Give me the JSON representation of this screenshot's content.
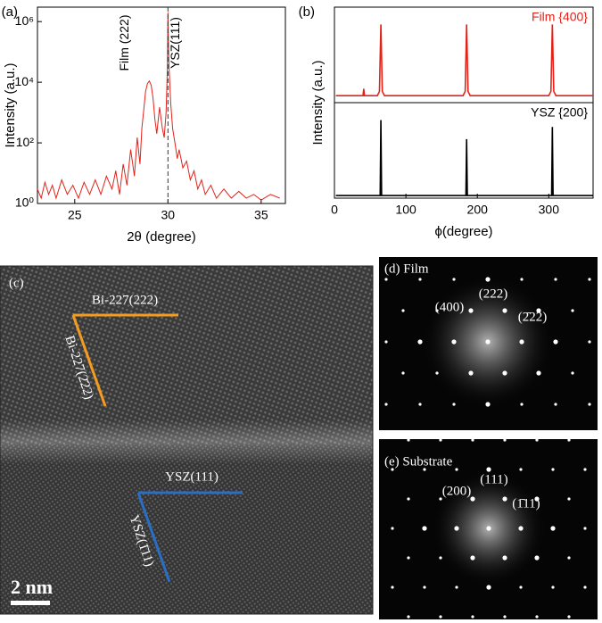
{
  "chart_data": [
    {
      "type": "line",
      "label": "(a)",
      "x_label": "2θ (degree)",
      "y_label": "Intensity (a.u.)",
      "log_y": true,
      "xlim": [
        23,
        36.3
      ],
      "xticks": [
        25,
        30,
        35
      ],
      "ylim": [
        1,
        3000000
      ],
      "yticks": [
        {
          "value": 1,
          "label": "10⁰"
        },
        {
          "value": 100,
          "label": "10²"
        },
        {
          "value": 10000,
          "label": "10⁴"
        },
        {
          "value": 1000000,
          "label": "10⁶"
        }
      ],
      "reference_line_x": 30,
      "annotations": [
        "Film (222)",
        "YSZ(111)"
      ],
      "series": [
        {
          "color": "#e2231a",
          "x": [
            23.0,
            23.2,
            23.4,
            23.6,
            23.8,
            24.0,
            24.3,
            24.6,
            24.9,
            25.2,
            25.5,
            25.8,
            26.1,
            26.4,
            26.7,
            27.0,
            27.2,
            27.4,
            27.6,
            27.8,
            28.0,
            28.2,
            28.35,
            28.5,
            28.6,
            28.7,
            28.8,
            28.9,
            29.0,
            29.1,
            29.2,
            29.3,
            29.4,
            29.55,
            29.7,
            29.8,
            29.9,
            29.97,
            30.0,
            30.05,
            30.15,
            30.25,
            30.4,
            30.5,
            30.6,
            30.8,
            31.0,
            31.2,
            31.4,
            31.6,
            31.8,
            32.0,
            32.3,
            32.6,
            33.0,
            33.4,
            33.8,
            34.2,
            34.6,
            35.0,
            35.5,
            36.0
          ],
          "values": [
            3,
            1.5,
            5,
            2,
            4,
            1.5,
            6,
            2,
            4,
            1.5,
            5,
            2,
            6,
            2,
            8,
            3,
            12,
            2,
            20,
            4,
            60,
            8,
            150,
            20,
            300,
            1200,
            5000,
            9000,
            11000,
            8000,
            3000,
            600,
            200,
            1500,
            300,
            150,
            1000,
            30000,
            2000000,
            40000,
            2000,
            300,
            80,
            30,
            60,
            15,
            25,
            6,
            12,
            3,
            6,
            2,
            4,
            1.5,
            3,
            1.5,
            2.5,
            1.5,
            2,
            1.3,
            2,
            1.5
          ]
        }
      ]
    },
    {
      "type": "stacked-line",
      "label": "(b)",
      "x_label": "ϕ(degree)",
      "y_label": "Intensity (a.u.)",
      "xlim": [
        0,
        362
      ],
      "xticks": [
        0,
        100,
        200,
        300
      ],
      "series": [
        {
          "name": "Film {400}",
          "color": "#e2231a",
          "ylim": [
            0,
            11
          ],
          "x": [
            2,
            30,
            40,
            41,
            42,
            60,
            63,
            65,
            67,
            70,
            180,
            183,
            185,
            187,
            190,
            300,
            303,
            305,
            307,
            310,
            362
          ],
          "values": [
            0.8,
            0.8,
            0.8,
            1.6,
            0.8,
            0.8,
            1.3,
            9,
            1.3,
            0.8,
            0.8,
            1.3,
            9,
            1.3,
            0.8,
            0.8,
            1.3,
            9,
            1.3,
            0.8,
            0.8
          ]
        },
        {
          "name": "YSZ {200}",
          "color": "#000000",
          "ylim": [
            0,
            11
          ],
          "x": [
            2,
            64,
            65,
            66,
            184,
            185,
            186,
            304,
            305,
            306,
            362
          ],
          "values": [
            0.3,
            0.3,
            9,
            0.3,
            0.3,
            6.8,
            0.3,
            0.3,
            8.2,
            0.3,
            0.3
          ]
        }
      ]
    }
  ],
  "images": {
    "c": {
      "label": "(c)",
      "film_planes": [
        "Bi-227(222)",
        "Bi-227(2̄22)"
      ],
      "substrate_planes": [
        "YSZ(111)",
        "YSZ(1̄11)"
      ],
      "scale_bar": "2 nm"
    },
    "d": {
      "label": "(d) Film",
      "spots": [
        "(400)",
        "(222)",
        "(2̄22)"
      ]
    },
    "e": {
      "label": "(e) Substrate",
      "spots": [
        "(200)",
        "(111)",
        "(1̄11)"
      ]
    }
  }
}
